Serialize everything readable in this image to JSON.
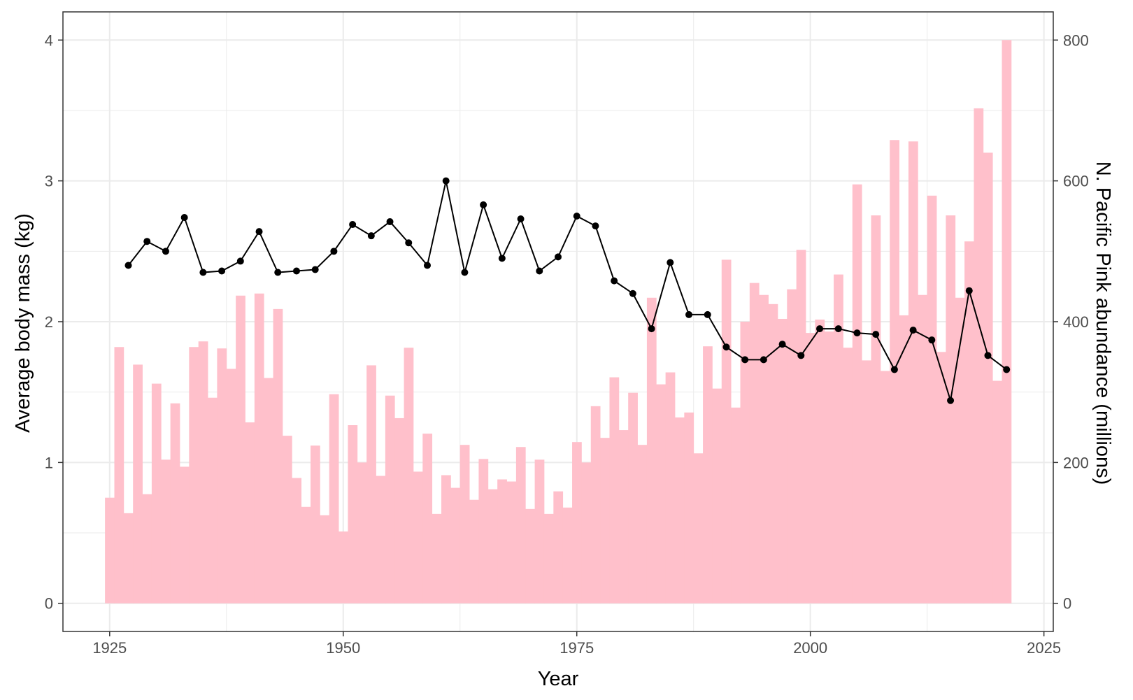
{
  "chart_data": {
    "type": "bar+line",
    "xlabel": "Year",
    "ylabel_left": "Average body mass (kg)",
    "ylabel_right": "N. Pacific Pink abundance (millions)",
    "xlim": [
      1920,
      2026
    ],
    "xticks": [
      1925,
      1950,
      1975,
      2000,
      2025
    ],
    "ylim_left": [
      -0.2,
      4.2
    ],
    "yticks_left": [
      0,
      1,
      2,
      3,
      4
    ],
    "ylim_right": [
      -40,
      840
    ],
    "yticks_right": [
      0,
      200,
      400,
      600,
      800
    ],
    "grid": true,
    "colors": {
      "bars": "#ffc0cb",
      "line": "#000000",
      "panel_border": "#333333",
      "grid": "#ebebeb"
    },
    "bar_series": {
      "name": "",
      "axis": "right",
      "x": [
        1925,
        1926,
        1927,
        1928,
        1929,
        1930,
        1931,
        1932,
        1933,
        1934,
        1935,
        1936,
        1937,
        1938,
        1939,
        1940,
        1941,
        1942,
        1943,
        1944,
        1945,
        1946,
        1947,
        1948,
        1949,
        1950,
        1951,
        1952,
        1953,
        1954,
        1955,
        1956,
        1957,
        1958,
        1959,
        1960,
        1961,
        1962,
        1963,
        1964,
        1965,
        1966,
        1967,
        1968,
        1969,
        1970,
        1971,
        1972,
        1973,
        1974,
        1975,
        1976,
        1977,
        1978,
        1979,
        1980,
        1981,
        1982,
        1983,
        1984,
        1985,
        1986,
        1987,
        1988,
        1989,
        1990,
        1991,
        1992,
        1993,
        1994,
        1995,
        1996,
        1997,
        1998,
        1999,
        2000,
        2001,
        2002,
        2003,
        2004,
        2005,
        2006,
        2007,
        2008,
        2009,
        2010,
        2011,
        2012,
        2013,
        2014,
        2015,
        2016,
        2017,
        2018,
        2019,
        2020,
        2021
      ],
      "values": [
        150,
        364,
        128,
        339,
        155,
        312,
        204,
        284,
        194,
        364,
        372,
        292,
        362,
        333,
        437,
        257,
        440,
        320,
        418,
        238,
        178,
        137,
        224,
        125,
        297,
        102,
        253,
        200,
        338,
        181,
        295,
        263,
        363,
        187,
        241,
        127,
        182,
        164,
        225,
        147,
        205,
        162,
        176,
        173,
        222,
        134,
        204,
        127,
        159,
        136,
        229,
        200,
        280,
        235,
        321,
        246,
        299,
        225,
        434,
        311,
        328,
        264,
        271,
        213,
        365,
        305,
        488,
        278,
        400,
        455,
        438,
        425,
        404,
        446,
        502,
        384,
        403,
        386,
        467,
        363,
        595,
        345,
        551,
        330,
        658,
        409,
        656,
        438,
        579,
        357,
        551,
        434,
        514,
        703,
        640,
        316,
        800
      ]
    },
    "line_series": {
      "name": "",
      "axis": "left",
      "x": [
        1927,
        1929,
        1931,
        1933,
        1935,
        1937,
        1939,
        1941,
        1943,
        1945,
        1947,
        1949,
        1951,
        1953,
        1955,
        1957,
        1959,
        1961,
        1963,
        1965,
        1967,
        1969,
        1971,
        1973,
        1975,
        1977,
        1979,
        1981,
        1983,
        1985,
        1987,
        1989,
        1991,
        1993,
        1995,
        1997,
        1999,
        2001,
        2003,
        2005,
        2007,
        2009,
        2011,
        2013,
        2015,
        2017,
        2019,
        2021
      ],
      "values": [
        2.4,
        2.57,
        2.5,
        2.74,
        2.35,
        2.36,
        2.43,
        2.64,
        2.35,
        2.36,
        2.37,
        2.5,
        2.69,
        2.61,
        2.71,
        2.56,
        2.4,
        3.0,
        2.35,
        2.83,
        2.45,
        2.73,
        2.36,
        2.46,
        2.75,
        2.68,
        2.29,
        2.2,
        1.95,
        2.42,
        2.05,
        2.05,
        1.82,
        1.73,
        1.73,
        1.84,
        1.76,
        1.95,
        1.95,
        1.92,
        1.91,
        1.66,
        1.94,
        1.87,
        1.44,
        2.22,
        1.76,
        1.66
      ]
    }
  }
}
